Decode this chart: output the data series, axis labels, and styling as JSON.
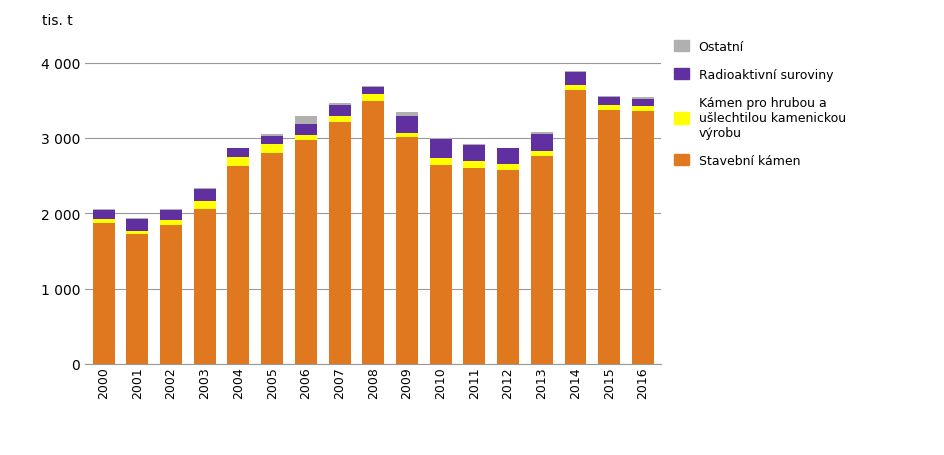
{
  "years": [
    "2000",
    "2001",
    "2002",
    "2003",
    "2004",
    "2005",
    "2006",
    "2007",
    "2008",
    "2009",
    "2010",
    "2011",
    "2012",
    "2013",
    "2014",
    "2015",
    "2016"
  ],
  "stavebni_kamen": [
    1870,
    1720,
    1840,
    2060,
    2630,
    2800,
    2970,
    3210,
    3490,
    3010,
    2640,
    2600,
    2580,
    2760,
    3630,
    3370,
    3360
  ],
  "kamen_pro_hrubou": [
    50,
    50,
    70,
    100,
    110,
    120,
    70,
    80,
    90,
    60,
    90,
    90,
    70,
    60,
    70,
    70,
    70
  ],
  "radioaktivni": [
    120,
    150,
    130,
    160,
    120,
    110,
    150,
    150,
    100,
    220,
    260,
    220,
    210,
    230,
    180,
    110,
    90
  ],
  "ostatni": [
    10,
    20,
    10,
    10,
    10,
    20,
    100,
    20,
    10,
    50,
    10,
    10,
    10,
    30,
    10,
    10,
    20
  ],
  "color_stavebni": "#E07820",
  "color_kamen": "#FFFF00",
  "color_radioaktivni": "#6030A0",
  "color_ostatni": "#B0B0B0",
  "ylabel": "tis. t",
  "ylim": [
    0,
    4300
  ],
  "yticks": [
    0,
    1000,
    2000,
    3000,
    4000
  ],
  "ytick_labels": [
    "0",
    "1 000",
    "2 000",
    "3 000",
    "4 000"
  ],
  "legend_labels": [
    "Ostatní",
    "Radioaktivní suroviny",
    "Kámen pro hrubou a\nušlechtilou kamenickou\nvýrobu",
    "Stavební kámen"
  ],
  "background_color": "#ffffff",
  "grid_color": "#999999"
}
